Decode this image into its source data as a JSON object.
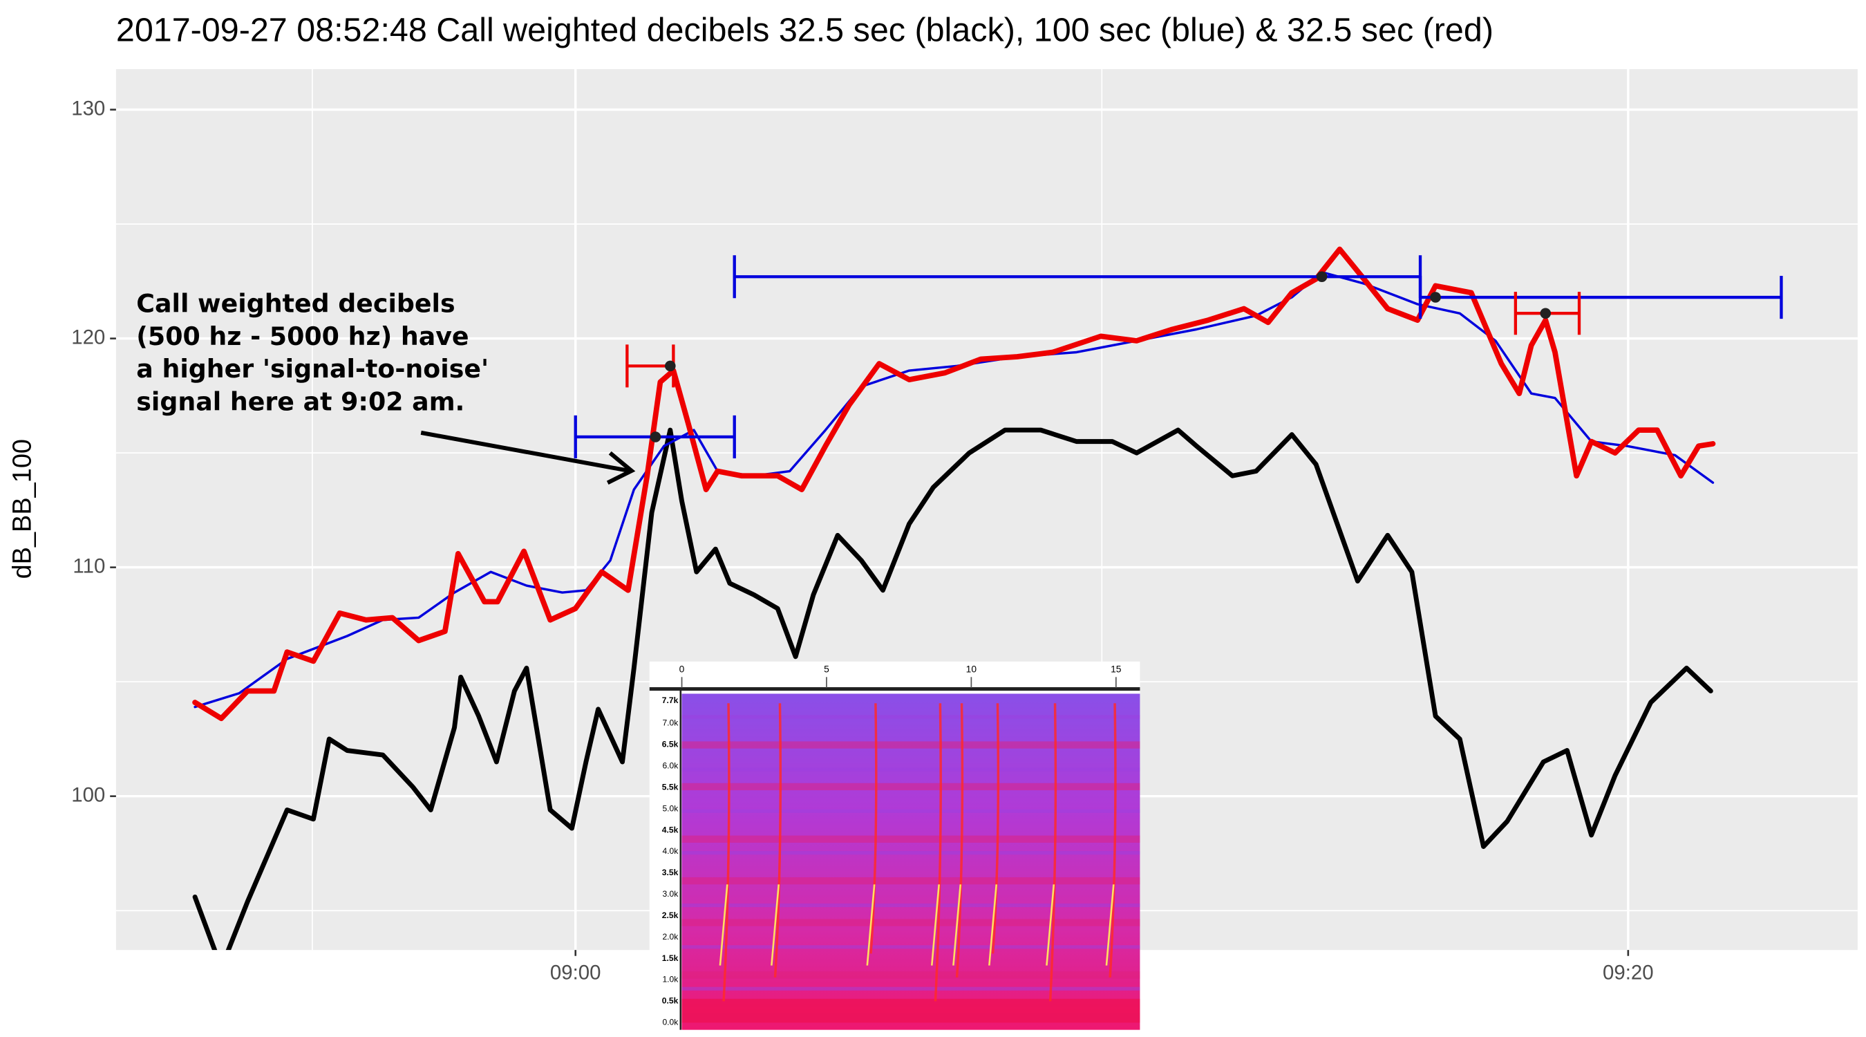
{
  "chart_data": {
    "type": "line",
    "title": "2017-09-27   08:52:48  Call weighted decibels 32.5 sec (black), 100 sec (blue) & 32.5 sec (red)",
    "ylabel": "dB_BB_100",
    "xlim": [
      -8.73,
      24.36
    ],
    "ylim": [
      93.28,
      131.77
    ],
    "xticks": [
      {
        "value": 0,
        "label": "09:00"
      },
      {
        "value": 20,
        "label": "09:20"
      }
    ],
    "yticks": [
      100,
      110,
      120,
      130
    ],
    "minor_xticks": [
      -5,
      10
    ],
    "minor_yticks": [
      95,
      105,
      115,
      125
    ],
    "grid": true,
    "series": [
      {
        "color": "#000000",
        "x": [
          -7.23,
          -6.73,
          -6.23,
          -5.93,
          -5.48,
          -4.98,
          -4.68,
          -4.34,
          -3.66,
          -3.09,
          -2.75,
          -2.3,
          -2.18,
          -1.84,
          -1.5,
          -1.16,
          -0.93,
          -0.48,
          -0.07,
          0.2,
          0.43,
          0.89,
          1.11,
          1.45,
          1.8,
          2.02,
          2.3,
          2.66,
          2.93,
          3.39,
          3.84,
          4.18,
          4.52,
          4.98,
          5.43,
          5.84,
          6.34,
          6.8,
          7.48,
          8.16,
          8.84,
          9.52,
          10.2,
          10.66,
          11.45,
          11.8,
          12.48,
          12.93,
          13.61,
          14.07,
          14.86,
          15.43,
          15.89,
          16.34,
          16.8,
          17.25,
          17.7,
          18.39,
          18.84,
          19.3,
          19.75,
          20.43,
          21.11,
          21.57
        ],
        "values": [
          95.6,
          92.5,
          95.4,
          97.0,
          99.4,
          99.0,
          102.5,
          102.0,
          101.8,
          100.4,
          99.4,
          103.0,
          105.2,
          103.5,
          101.5,
          104.6,
          105.6,
          99.4,
          98.6,
          101.5,
          103.8,
          101.5,
          105.6,
          112.4,
          116.0,
          112.9,
          109.8,
          110.8,
          109.3,
          108.8,
          108.2,
          106.1,
          108.8,
          111.4,
          110.3,
          109.0,
          111.9,
          113.5,
          115.0,
          116.0,
          116.0,
          115.5,
          115.5,
          115.0,
          116.0,
          115.3,
          114.0,
          114.2,
          115.8,
          114.5,
          109.4,
          111.4,
          109.8,
          103.5,
          102.5,
          97.8,
          98.9,
          101.5,
          102.0,
          98.3,
          100.9,
          104.1,
          105.6,
          104.6
        ]
      },
      {
        "color": "#0000dd",
        "x": [
          -7.23,
          -6.39,
          -5.48,
          -4.34,
          -3.66,
          -2.98,
          -2.3,
          -1.61,
          -0.93,
          -0.25,
          0.2,
          0.66,
          1.11,
          1.68,
          2.25,
          2.7,
          3.39,
          4.07,
          4.75,
          5.43,
          6.34,
          7.25,
          8.39,
          9.52,
          10.66,
          11.8,
          12.93,
          13.61,
          14.18,
          14.98,
          16.0,
          16.8,
          17.48,
          18.16,
          18.61,
          19.3,
          19.98,
          20.89,
          21.61
        ],
        "values": [
          103.9,
          104.5,
          106.0,
          107.0,
          107.7,
          107.8,
          108.9,
          109.8,
          109.2,
          108.9,
          109.0,
          110.3,
          113.4,
          115.3,
          116.0,
          114.2,
          114.0,
          114.2,
          116.0,
          117.9,
          118.6,
          118.8,
          119.2,
          119.4,
          119.9,
          120.4,
          121.0,
          121.8,
          122.9,
          122.4,
          121.5,
          121.1,
          119.9,
          117.6,
          117.4,
          115.5,
          115.3,
          114.9,
          113.7
        ]
      },
      {
        "color": "#ee0000",
        "x": [
          -7.23,
          -6.73,
          -6.23,
          -5.73,
          -5.48,
          -4.98,
          -4.48,
          -3.98,
          -3.48,
          -2.98,
          -2.48,
          -2.23,
          -1.73,
          -1.48,
          -0.98,
          -0.48,
          0,
          0.5,
          1.0,
          1.36,
          1.61,
          1.86,
          2.14,
          2.48,
          2.7,
          3.16,
          3.84,
          4.3,
          4.75,
          5.2,
          5.77,
          6.34,
          7.02,
          7.7,
          8.39,
          9.07,
          9.98,
          10.66,
          11.34,
          12.02,
          12.7,
          13.16,
          13.61,
          14.07,
          14.52,
          14.98,
          15.43,
          16.0,
          16.34,
          17.02,
          17.59,
          17.93,
          18.16,
          18.43,
          18.61,
          19.02,
          19.3,
          19.75,
          20.2,
          20.55,
          21.0,
          21.34,
          21.61
        ],
        "values": [
          104.1,
          103.4,
          104.6,
          104.6,
          106.3,
          105.9,
          108.0,
          107.7,
          107.8,
          106.8,
          107.2,
          110.6,
          108.5,
          108.5,
          110.7,
          107.7,
          108.2,
          109.8,
          109.0,
          114.0,
          118.1,
          118.6,
          116.3,
          113.4,
          114.2,
          114.0,
          114.0,
          113.4,
          115.3,
          117.1,
          118.9,
          118.2,
          118.5,
          119.1,
          119.2,
          119.4,
          120.1,
          119.9,
          120.4,
          120.8,
          121.3,
          120.7,
          122.0,
          122.6,
          123.9,
          122.6,
          121.3,
          120.8,
          122.3,
          122.0,
          118.9,
          117.6,
          119.7,
          120.8,
          119.4,
          114.0,
          115.5,
          115.0,
          116.0,
          116.0,
          114.0,
          115.3,
          115.4
        ]
      }
    ],
    "error_bars": [
      {
        "color": "#0000dd",
        "y": 115.7,
        "x": 1.52,
        "xmin": 0,
        "xmax": 3.02
      },
      {
        "color": "#0000dd",
        "y": 122.7,
        "x": 14.18,
        "xmin": 3.02,
        "xmax": 16.05
      },
      {
        "color": "#0000dd",
        "y": 121.8,
        "x": 16.34,
        "xmin": 16.05,
        "xmax": 22.91
      },
      {
        "color": "#ee0000",
        "y": 118.8,
        "x": 1.8,
        "xmin": 0.98,
        "xmax": 1.86
      },
      {
        "color": "#ee0000",
        "y": 121.1,
        "x": 18.43,
        "xmin": 17.86,
        "xmax": 19.07
      }
    ],
    "annotation": [
      "Call weighted decibels",
      "(500 hz - 5000 hz) have",
      "a higher 'signal-to-noise'",
      "signal here at 9:02 am."
    ],
    "inset": {
      "time_labels": [
        "0",
        "5",
        "10",
        "15"
      ],
      "freq_labels": [
        "7.7k",
        "7.0k",
        "6.5k",
        "6.0k",
        "5.5k",
        "5.0k",
        "4.5k",
        "4.0k",
        "3.5k",
        "3.0k",
        "2.5k",
        "2.0k",
        "1.5k",
        "1.0k",
        "0.5k",
        "0.0k"
      ]
    }
  }
}
